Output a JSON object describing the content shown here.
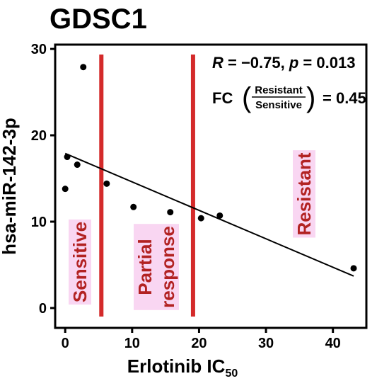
{
  "title": "GDSC1",
  "chart_data": {
    "type": "scatter",
    "xlabel": "Erlotinib IC",
    "xlabel_sub": "50",
    "ylabel": "hsa-miR-142-3p",
    "xlim": [
      -1.5,
      45
    ],
    "ylim": [
      -2.3,
      30.5
    ],
    "xticks": [
      0,
      10,
      20,
      30,
      40
    ],
    "yticks": [
      0,
      10,
      20,
      30
    ],
    "points": [
      {
        "x": 0.0,
        "y": 13.8
      },
      {
        "x": 0.3,
        "y": 17.5
      },
      {
        "x": 1.8,
        "y": 16.6
      },
      {
        "x": 2.7,
        "y": 27.9
      },
      {
        "x": 6.2,
        "y": 14.4
      },
      {
        "x": 10.2,
        "y": 11.7
      },
      {
        "x": 15.7,
        "y": 11.1
      },
      {
        "x": 20.3,
        "y": 10.4
      },
      {
        "x": 23.1,
        "y": 10.7
      },
      {
        "x": 43.1,
        "y": 4.6
      }
    ],
    "regression_line": {
      "x": [
        0,
        43.1
      ],
      "y": [
        17.9,
        3.7
      ]
    },
    "thresholds": [
      5.4,
      19.1
    ],
    "regions": [
      "Sensitive",
      "Partial response",
      "Resistant"
    ],
    "annotation": {
      "r_label": "R",
      "r_value": " = −0.75, ",
      "p_label": "p",
      "p_value": " = 0.013",
      "fc_label": "FC",
      "fc_numerator": "Resistant",
      "fc_denominator": "Sensitive",
      "fc_value": "= 0.45"
    },
    "colors": {
      "threshold": "#d42a2a",
      "region_text": "#b22222",
      "region_bg": "#f9d6f2",
      "points": "#000000"
    }
  }
}
